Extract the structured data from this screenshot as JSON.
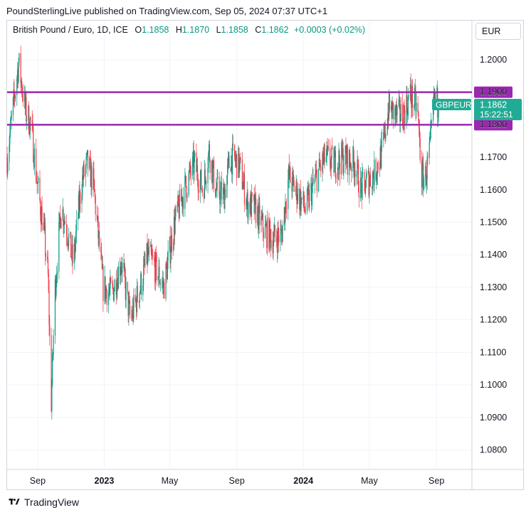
{
  "header": {
    "publisher": "PoundSterlingLive published on TradingView.com, Sep 05, 2024 07:37 UTC+1"
  },
  "legend": {
    "symbol": "British Pound / Euro, 1D, ICE",
    "o_label": "O",
    "o_value": "1.1858",
    "h_label": "H",
    "h_value": "1.1870",
    "l_label": "L",
    "l_value": "1.1858",
    "c_label": "C",
    "c_value": "1.1862",
    "change": "+0.0003 (+0.02%)"
  },
  "currency": "EUR",
  "footer": {
    "brand": "TradingView"
  },
  "colors": {
    "up": "#089981",
    "down": "#f23645",
    "level": "#9c27b0",
    "price_tag": "#22ab94"
  },
  "chart_data": {
    "type": "candlestick",
    "y_range": [
      1.074,
      1.212
    ],
    "y_ticks": [
      "1.2000",
      "1.1900",
      "1.1800",
      "1.1700",
      "1.1600",
      "1.1500",
      "1.1400",
      "1.1300",
      "1.1200",
      "1.1100",
      "1.1000",
      "1.0900",
      "1.0800"
    ],
    "x_range": [
      "2022-07-07",
      "2024-11-05"
    ],
    "x_ticks": [
      {
        "label": "Sep",
        "date": "2022-09-01",
        "bold": false
      },
      {
        "label": "2023",
        "date": "2023-01-01",
        "bold": true
      },
      {
        "label": "May",
        "date": "2023-05-01",
        "bold": false
      },
      {
        "label": "Sep",
        "date": "2023-09-01",
        "bold": false
      },
      {
        "label": "2024",
        "date": "2024-01-01",
        "bold": true
      },
      {
        "label": "May",
        "date": "2024-05-01",
        "bold": false
      },
      {
        "label": "Sep",
        "date": "2024-09-01",
        "bold": false
      }
    ],
    "levels": [
      {
        "value": 1.19,
        "label": "1.1900"
      },
      {
        "value": 1.18,
        "label": "1.1800"
      }
    ],
    "last": {
      "symbol": "GBPEUR",
      "value": 1.1862,
      "label": "1.1862",
      "countdown": "15:22:51"
    },
    "path": [
      [
        "2022-07-07",
        1.17
      ],
      [
        "2022-07-20",
        1.188
      ],
      [
        "2022-07-28",
        1.199
      ],
      [
        "2022-08-10",
        1.184
      ],
      [
        "2022-08-20",
        1.18
      ],
      [
        "2022-08-31",
        1.162
      ],
      [
        "2022-09-12",
        1.148
      ],
      [
        "2022-09-20",
        1.133
      ],
      [
        "2022-09-26",
        1.095
      ],
      [
        "2022-10-03",
        1.13
      ],
      [
        "2022-10-14",
        1.155
      ],
      [
        "2022-10-25",
        1.148
      ],
      [
        "2022-11-05",
        1.137
      ],
      [
        "2022-11-20",
        1.162
      ],
      [
        "2022-12-01",
        1.168
      ],
      [
        "2022-12-12",
        1.162
      ],
      [
        "2022-12-30",
        1.13
      ],
      [
        "2023-01-15",
        1.128
      ],
      [
        "2023-02-01",
        1.138
      ],
      [
        "2023-02-18",
        1.12
      ],
      [
        "2023-03-08",
        1.13
      ],
      [
        "2023-03-22",
        1.14
      ],
      [
        "2023-04-05",
        1.136
      ],
      [
        "2023-04-20",
        1.13
      ],
      [
        "2023-05-10",
        1.15
      ],
      [
        "2023-05-28",
        1.16
      ],
      [
        "2023-06-15",
        1.168
      ],
      [
        "2023-07-01",
        1.16
      ],
      [
        "2023-07-12",
        1.172
      ],
      [
        "2023-07-25",
        1.16
      ],
      [
        "2023-08-08",
        1.158
      ],
      [
        "2023-08-20",
        1.17
      ],
      [
        "2023-09-05",
        1.168
      ],
      [
        "2023-09-20",
        1.156
      ],
      [
        "2023-10-05",
        1.154
      ],
      [
        "2023-10-20",
        1.148
      ],
      [
        "2023-11-05",
        1.145
      ],
      [
        "2023-11-22",
        1.146
      ],
      [
        "2023-12-05",
        1.164
      ],
      [
        "2023-12-18",
        1.16
      ],
      [
        "2024-01-05",
        1.154
      ],
      [
        "2024-01-25",
        1.164
      ],
      [
        "2024-02-10",
        1.17
      ],
      [
        "2024-02-25",
        1.168
      ],
      [
        "2024-03-15",
        1.17
      ],
      [
        "2024-04-05",
        1.168
      ],
      [
        "2024-04-15",
        1.16
      ],
      [
        "2024-04-25",
        1.162
      ],
      [
        "2024-05-10",
        1.165
      ],
      [
        "2024-05-25",
        1.172
      ],
      [
        "2024-06-05",
        1.185
      ],
      [
        "2024-06-20",
        1.183
      ],
      [
        "2024-07-01",
        1.183
      ],
      [
        "2024-07-15",
        1.189
      ],
      [
        "2024-07-28",
        1.185
      ],
      [
        "2024-08-05",
        1.164
      ],
      [
        "2024-08-12",
        1.164
      ],
      [
        "2024-08-20",
        1.172
      ],
      [
        "2024-08-28",
        1.188
      ],
      [
        "2024-09-05",
        1.1862
      ]
    ]
  }
}
